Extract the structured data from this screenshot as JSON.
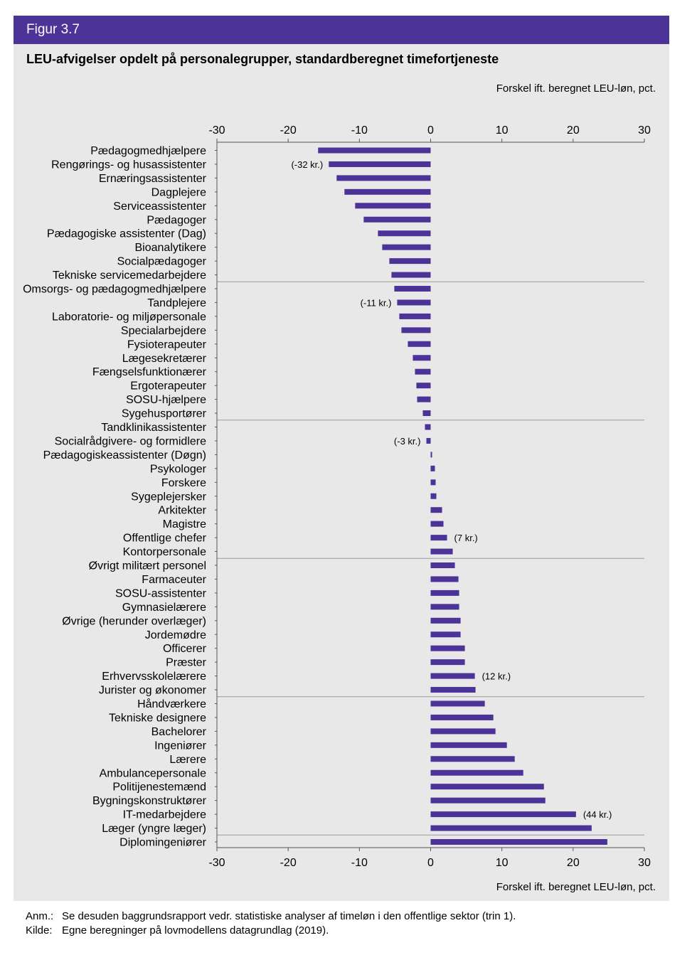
{
  "figure": {
    "label": "Figur 3.7",
    "title": "LEU-afvigelser opdelt på personalegrupper, standardberegnet timefortjeneste"
  },
  "colors": {
    "header_bg": "#4b3398",
    "bar": "#4b3398",
    "panel_bg": "#e8e8e8"
  },
  "chart_data": {
    "type": "bar",
    "orientation": "horizontal",
    "title": "LEU-afvigelser opdelt på personalegrupper, standardberegnet timefortjeneste",
    "xlabel": "Forskel ift. beregnet LEU-løn, pct.",
    "xlim": [
      -30,
      30
    ],
    "xticks": [
      -30,
      -20,
      -10,
      0,
      10,
      20,
      30
    ],
    "grid": "horizontal separator lines",
    "categories": [
      "Pædagogmedhjælpere",
      "Rengørings- og husassistenter",
      "Ernæringsassistenter",
      "Dagplejere",
      "Serviceassistenter",
      "Pædagoger",
      "Pædagogiske assistenter (Dag)",
      "Bioanalytikere",
      "Socialpædagoger",
      "Tekniske servicemedarbejdere",
      "Omsorgs- og pædagogmedhjælpere",
      "Tandplejere",
      "Laboratorie- og miljøpersonale",
      "Specialarbejdere",
      "Fysioterapeuter",
      "Lægesekretærer",
      "Fængselsfunktionærer",
      "Ergoterapeuter",
      "SOSU-hjælpere",
      "Sygehusportører",
      "Tandklinikassistenter",
      "Socialrådgivere- og formidlere",
      "Pædagogiskeassistenter (Døgn)",
      "Psykologer",
      "Forskere",
      "Sygeplejersker",
      "Arkitekter",
      "Magistre",
      "Offentlige chefer",
      "Kontorpersonale",
      "Øvrigt militært personel",
      "Farmaceuter",
      "SOSU-assistenter",
      "Gymnasielærere",
      "Øvrige (herunder overlæger)",
      "Jordemødre",
      "Officerer",
      "Præster",
      "Erhvervsskolelærere",
      "Jurister og økonomer",
      "Håndværkere",
      "Tekniske designere",
      "Bachelorer",
      "Ingeniører",
      "Lærere",
      "Ambulancepersonale",
      "Politijenestemænd",
      "Bygningskonstruktører",
      "IT-medarbejdere",
      "Læger (yngre læger)",
      "Diplomingeniører"
    ],
    "values": [
      -15.8,
      -14.3,
      -13.2,
      -12.1,
      -10.6,
      -9.4,
      -7.4,
      -6.8,
      -5.8,
      -5.5,
      -5.1,
      -4.7,
      -4.4,
      -4.1,
      -3.2,
      -2.5,
      -2.2,
      -2.0,
      -1.9,
      -1.1,
      -0.8,
      -0.6,
      0.2,
      0.6,
      0.7,
      0.8,
      1.6,
      1.8,
      2.3,
      3.1,
      3.4,
      3.9,
      4.0,
      4.0,
      4.2,
      4.2,
      4.8,
      4.8,
      6.2,
      6.3,
      7.6,
      8.8,
      9.1,
      10.7,
      11.8,
      13.0,
      15.9,
      16.1,
      20.4,
      22.6,
      24.8
    ],
    "annotations": [
      {
        "category": "Rengørings- og husassistenter",
        "text": "(-32 kr.)"
      },
      {
        "category": "Tandplejere",
        "text": "(-11 kr.)"
      },
      {
        "category": "Socialrådgivere- og formidlere",
        "text": "(-3 kr.)"
      },
      {
        "category": "Offentlige chefer",
        "text": "(7 kr.)"
      },
      {
        "category": "Erhvervsskolelærere",
        "text": "(12 kr.)"
      },
      {
        "category": "IT-medarbejdere",
        "text": "(44 kr.)"
      }
    ],
    "separators_after": [
      "Tekniske servicemedarbejdere",
      "Sygehusportører",
      "Kontorpersonale",
      "Jurister og økonomer",
      "Læger (yngre læger)"
    ]
  },
  "notes": {
    "anm_key": "Anm.:",
    "anm_text": "Se desuden baggrundsrapport vedr. statistiske analyser af timeløn i den offentlige sektor (trin 1).",
    "kilde_key": "Kilde:",
    "kilde_text": "Egne beregninger på lovmodellens datagrundlag (2019)."
  }
}
